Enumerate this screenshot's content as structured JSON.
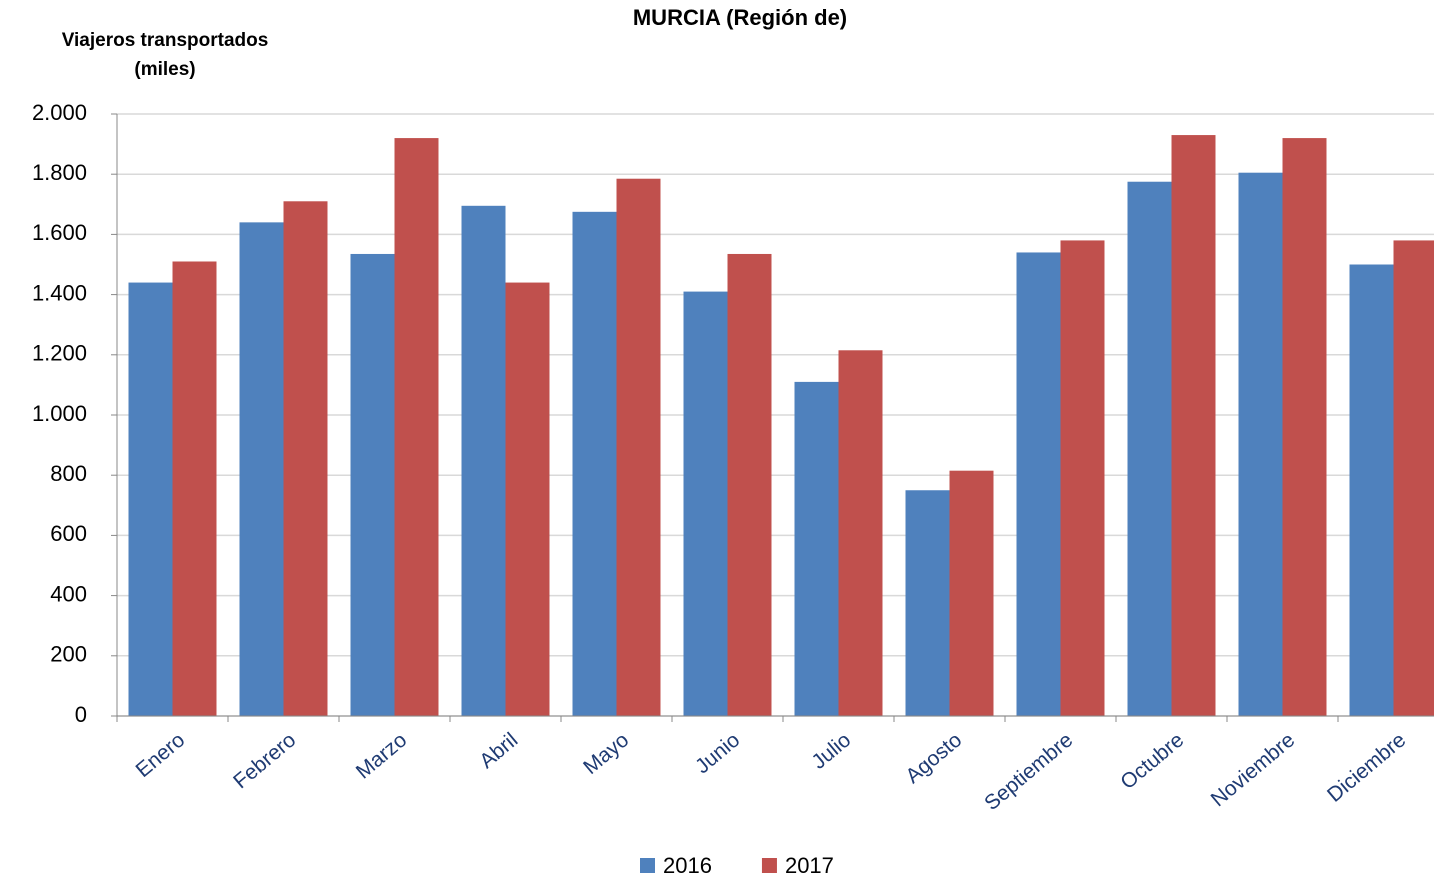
{
  "chart_data": {
    "type": "bar",
    "title": "MURCIA (Región de)",
    "ylabel": [
      "Viajeros transportados",
      "(miles)"
    ],
    "categories": [
      "Enero",
      "Febrero",
      "Marzo",
      "Abril",
      "Mayo",
      "Junio",
      "Julio",
      "Agosto",
      "Septiembre",
      "Octubre",
      "Noviembre",
      "Diciembre"
    ],
    "series": [
      {
        "name": "2016",
        "color": "#4f81bd",
        "values": [
          1440,
          1640,
          1535,
          1695,
          1675,
          1410,
          1110,
          750,
          1540,
          1775,
          1805,
          1500
        ]
      },
      {
        "name": "2017",
        "color": "#c0504d",
        "values": [
          1510,
          1710,
          1920,
          1440,
          1785,
          1535,
          1215,
          815,
          1580,
          1930,
          1920,
          1580
        ]
      }
    ],
    "ylim": [
      0,
      2000
    ],
    "yticks": [
      0,
      200,
      400,
      600,
      800,
      {
        "value": 1000,
        "label": "1.000"
      },
      {
        "value": 1200,
        "label": "1.200"
      },
      {
        "value": 1400,
        "label": "1.400"
      },
      {
        "value": 1600,
        "label": "1.600"
      },
      {
        "value": 1800,
        "label": "1.800"
      },
      {
        "value": 2000,
        "label": "2.000"
      }
    ],
    "grid": true,
    "legend": "bottom"
  }
}
